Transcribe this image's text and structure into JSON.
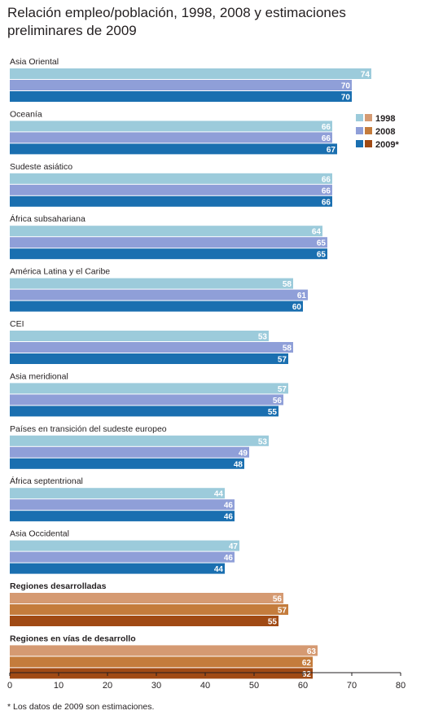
{
  "title": "Relación empleo/población, 1998, 2008 y estimaciones preliminares de 2009",
  "footnote": "* Los datos de 2009 son estimaciones.",
  "colors": {
    "regular": [
      "#9ccbdb",
      "#8f9fd8",
      "#1a6fb0"
    ],
    "highlight": [
      "#d59a72",
      "#c47c3c",
      "#a04a14"
    ],
    "axis": "#231f20"
  },
  "chart_data": {
    "type": "bar",
    "orientation": "horizontal",
    "title": "Relación empleo/población, 1998, 2008 y estimaciones preliminares de 2009",
    "xlim": [
      0,
      80
    ],
    "xticks": [
      0,
      10,
      20,
      30,
      40,
      50,
      60,
      70,
      80
    ],
    "legend_position": "top-right",
    "series": [
      {
        "name": "1998"
      },
      {
        "name": "2008"
      },
      {
        "name": "2009*"
      }
    ],
    "groups": [
      {
        "label": "Asia Oriental",
        "values": [
          74,
          70,
          70
        ],
        "highlight": false
      },
      {
        "label": "Oceanía",
        "values": [
          66,
          66,
          67
        ],
        "highlight": false
      },
      {
        "label": "Sudeste asiático",
        "values": [
          66,
          66,
          66
        ],
        "highlight": false
      },
      {
        "label": "África subsahariana",
        "values": [
          64,
          65,
          65
        ],
        "highlight": false
      },
      {
        "label": "América Latina y el Caribe",
        "values": [
          58,
          61,
          60
        ],
        "highlight": false
      },
      {
        "label": "CEI",
        "values": [
          53,
          58,
          57
        ],
        "highlight": false
      },
      {
        "label": "Asia meridional",
        "values": [
          57,
          56,
          55
        ],
        "highlight": false
      },
      {
        "label": "Países en transición del sudeste europeo",
        "values": [
          53,
          49,
          48
        ],
        "highlight": false
      },
      {
        "label": "África septentrional",
        "values": [
          44,
          46,
          46
        ],
        "highlight": false
      },
      {
        "label": "Asia Occidental",
        "values": [
          47,
          46,
          44
        ],
        "highlight": false
      },
      {
        "label": "Regiones desarrolladas",
        "values": [
          56,
          57,
          55
        ],
        "highlight": true
      },
      {
        "label": "Regiones en vías de desarrollo",
        "values": [
          63,
          62,
          62
        ],
        "highlight": true
      }
    ]
  }
}
